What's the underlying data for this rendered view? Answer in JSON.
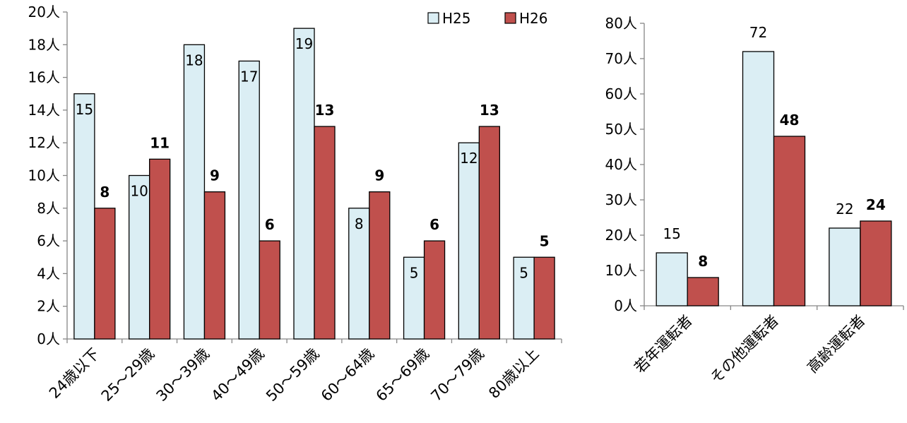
{
  "colors": {
    "h25_fill": "#dbeef4",
    "h26_fill": "#c0504d",
    "outline": "#000000"
  },
  "legend": [
    {
      "label": "H25",
      "color": "#dbeef4"
    },
    {
      "label": "H26",
      "color": "#c0504d"
    }
  ],
  "chart_data": [
    {
      "type": "bar",
      "title": "",
      "xlabel": "",
      "ylabel": "",
      "ylim": [
        0,
        20
      ],
      "y_tick_step": 2,
      "y_unit": "人",
      "y_tick_labels": [
        "0人",
        "2人",
        "4人",
        "6人",
        "8人",
        "10人",
        "12人",
        "14人",
        "16人",
        "18人",
        "20人"
      ],
      "grid": false,
      "legend_position": "top-right",
      "categories": [
        "24歳以下",
        "25～29歳",
        "30～39歳",
        "40～49歳",
        "50～59歳",
        "60～64歳",
        "65～69歳",
        "70～79歳",
        "80歳以上"
      ],
      "series": [
        {
          "name": "H25",
          "values": [
            15,
            10,
            18,
            17,
            19,
            8,
            5,
            12,
            5
          ]
        },
        {
          "name": "H26",
          "values": [
            8,
            11,
            9,
            6,
            13,
            9,
            6,
            13,
            5
          ]
        }
      ]
    },
    {
      "type": "bar",
      "title": "",
      "xlabel": "",
      "ylabel": "",
      "ylim": [
        0,
        80
      ],
      "y_tick_step": 10,
      "y_unit": "人",
      "y_tick_labels": [
        "0人",
        "10人",
        "20人",
        "30人",
        "40人",
        "50人",
        "60人",
        "70人",
        "80人"
      ],
      "grid": false,
      "categories": [
        "若年運転者",
        "その他運転者",
        "高齢運転者"
      ],
      "series": [
        {
          "name": "H25",
          "values": [
            15,
            72,
            22
          ]
        },
        {
          "name": "H26",
          "values": [
            8,
            48,
            24
          ]
        }
      ]
    }
  ]
}
